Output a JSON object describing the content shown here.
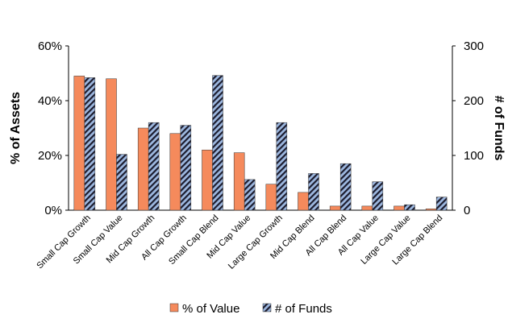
{
  "chart_data": {
    "type": "bar",
    "categories": [
      "Small Cap Growth",
      "Small Cap Value",
      "Mid Cap Growth",
      "All Cap Growth",
      "Small Cap Blend",
      "Mid Cap Value",
      "Large Cap Growth",
      "Mid Cap Blend",
      "All Cap Blend",
      "All Cap Value",
      "Large Cap Value",
      "Large Cap Blend"
    ],
    "series": [
      {
        "name": "% of Value",
        "axis": "left",
        "color": "#f58a5c",
        "values": [
          49,
          48,
          30,
          28,
          22,
          21,
          9.5,
          6.5,
          1.5,
          1.5,
          1.5,
          0.5
        ]
      },
      {
        "name": "# of Funds",
        "axis": "right",
        "color": "#9db8e0",
        "pattern": "diagonal-stripes",
        "values": [
          242,
          102,
          160,
          155,
          246,
          56,
          160,
          67,
          85,
          52,
          10,
          24
        ]
      }
    ],
    "ylabel_left": "% of Assets",
    "ylabel_right": "# of Funds",
    "ylim_left": [
      0,
      60
    ],
    "ylim_right": [
      0,
      300
    ],
    "yticks_left": [
      "0%",
      "20%",
      "40%",
      "60%"
    ],
    "yticks_right": [
      "0",
      "100",
      "200",
      "300"
    ],
    "grid": false,
    "legend_position": "bottom"
  }
}
